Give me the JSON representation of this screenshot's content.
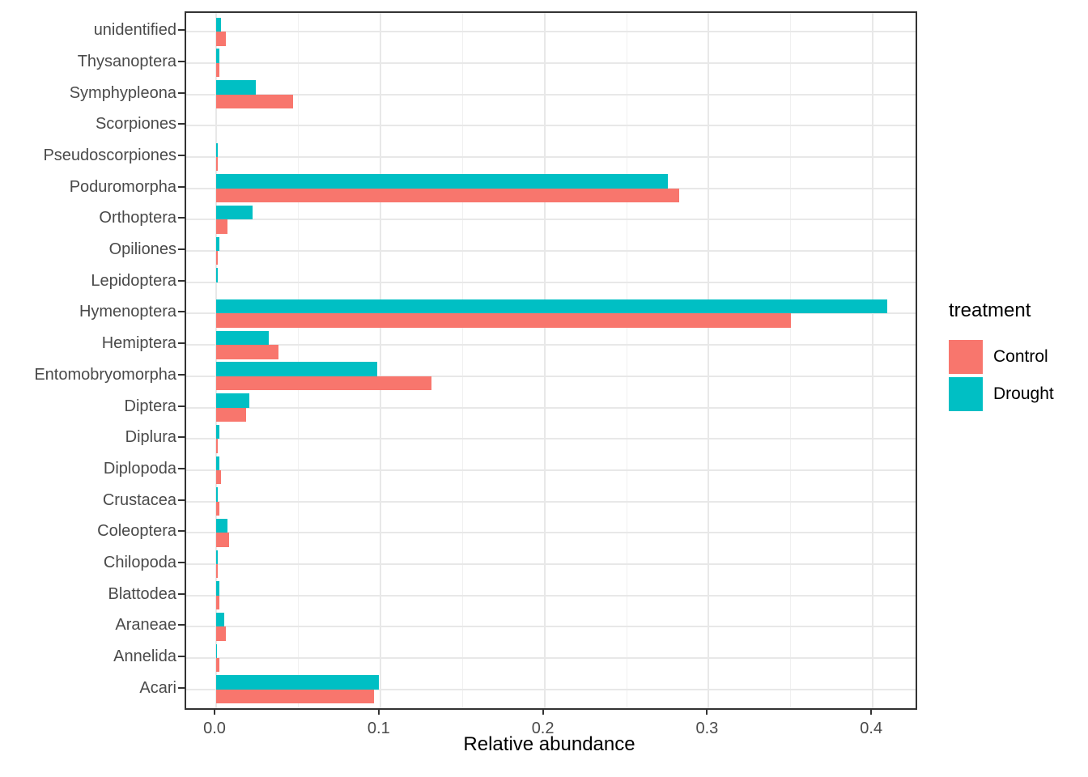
{
  "figure": {
    "background": "#ffffff",
    "panel_border_color": "#333333",
    "grid_major_color": "#e8e8e8",
    "grid_minor_color": "#f0f0f0",
    "axis_text_color": "#4a4a4a",
    "axis_title_color": "#000000"
  },
  "chart_data": {
    "type": "bar",
    "orientation": "horizontal",
    "title": "",
    "xlabel": "Relative abundance",
    "ylabel": "",
    "legend_title": "treatment",
    "legend_position": "right",
    "grid": true,
    "xlim": [
      -0.018,
      0.425
    ],
    "x_tick_values": [
      0.0,
      0.1,
      0.2,
      0.3,
      0.4
    ],
    "x_tick_labels": [
      "0.0",
      "0.1",
      "0.2",
      "0.3",
      "0.4"
    ],
    "x_minor_tick_values": [
      0.05,
      0.15,
      0.25,
      0.35
    ],
    "categories_top_to_bottom": [
      "unidentified",
      "Thysanoptera",
      "Symphypleona",
      "Scorpiones",
      "Pseudoscorpiones",
      "Poduromorpha",
      "Orthoptera",
      "Opiliones",
      "Lepidoptera",
      "Hymenoptera",
      "Hemiptera",
      "Entomobryomorpha",
      "Diptera",
      "Diplura",
      "Diplopoda",
      "Crustacea",
      "Coleoptera",
      "Chilopoda",
      "Blattodea",
      "Araneae",
      "Annelida",
      "Acari"
    ],
    "series": [
      {
        "name": "Control",
        "color": "#F8766D",
        "values": [
          0.006,
          0.002,
          0.047,
          0.0,
          0.001,
          0.282,
          0.007,
          0.001,
          0.0,
          0.35,
          0.038,
          0.131,
          0.018,
          0.001,
          0.003,
          0.002,
          0.008,
          0.001,
          0.002,
          0.006,
          0.002,
          0.096
        ]
      },
      {
        "name": "Drought",
        "color": "#00BFC4",
        "values": [
          0.003,
          0.002,
          0.024,
          0.0,
          0.001,
          0.275,
          0.022,
          0.002,
          0.0008,
          0.409,
          0.032,
          0.098,
          0.02,
          0.002,
          0.002,
          0.001,
          0.007,
          0.001,
          0.002,
          0.005,
          0.0005,
          0.099
        ]
      }
    ]
  }
}
